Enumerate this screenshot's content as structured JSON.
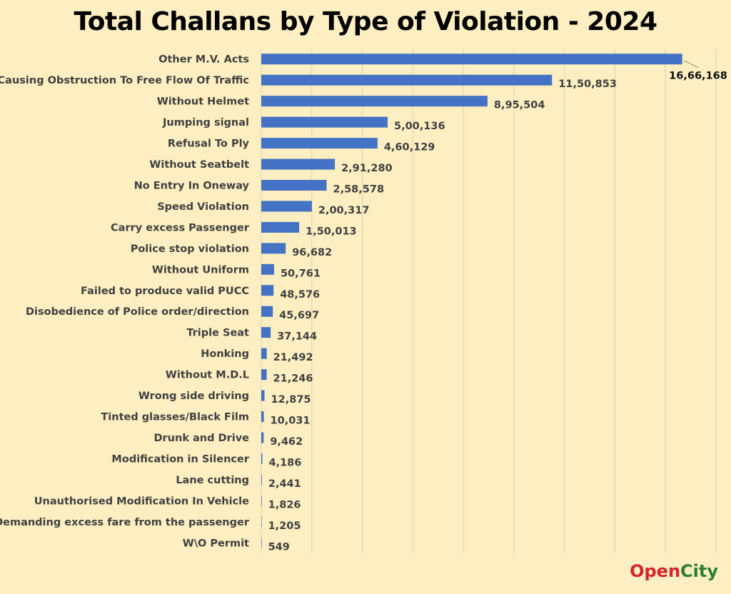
{
  "chart_data": {
    "type": "bar",
    "orientation": "horizontal",
    "title": "Total Challans by Type of Violation - 2024",
    "categories": [
      "Other M.V. Acts",
      "Causing Obstruction To Free Flow Of Traffic",
      "Without Helmet",
      "Jumping signal",
      "Refusal To Ply",
      "Without Seatbelt",
      "No Entry In Oneway",
      "Speed Violation",
      "Carry excess Passenger",
      "Police stop violation",
      "Without Uniform",
      "Failed to produce valid PUCC",
      "Disobedience of Police order/direction",
      "Triple Seat",
      "Honking",
      "Without M.D.L",
      "Wrong side driving",
      "Tinted glasses/Black Film",
      "Drunk and Drive",
      "Modification in Silencer",
      "Lane cutting",
      "Unauthorised Modification In Vehicle",
      "Demanding excess fare from the passenger",
      "W\\O Permit"
    ],
    "values": [
      1666168,
      1150853,
      895504,
      500136,
      460129,
      291280,
      258578,
      200317,
      150013,
      96682,
      50761,
      48576,
      45697,
      37144,
      21492,
      21246,
      12875,
      10031,
      9462,
      4186,
      2441,
      1826,
      1205,
      549
    ],
    "value_labels": [
      "16,66,168",
      "11,50,853",
      "8,95,504",
      "5,00,136",
      "4,60,129",
      "2,91,280",
      "2,58,578",
      "2,00,317",
      "1,50,013",
      "96,682",
      "50,761",
      "48,576",
      "45,697",
      "37,144",
      "21,492",
      "21,246",
      "12,875",
      "10,031",
      "9,462",
      "4,186",
      "2,441",
      "1,826",
      "1,205",
      "549"
    ],
    "xlim": [
      0,
      1800000
    ],
    "grid": true,
    "bar_color": "#4472c4"
  },
  "logo": {
    "part1": "Open",
    "part2": "City",
    "color1": "#d8232a",
    "color2": "#2e7d32"
  }
}
